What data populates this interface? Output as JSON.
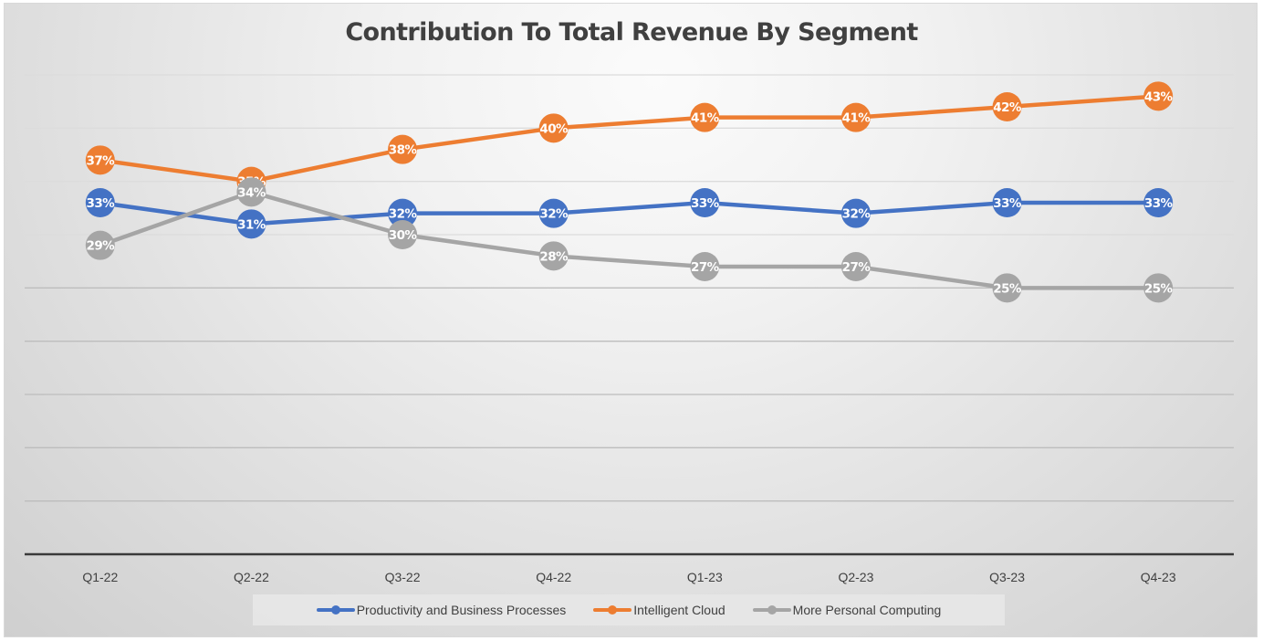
{
  "chart_data": {
    "type": "line",
    "title": "Contribution To Total Revenue By Segment",
    "xlabel": "",
    "ylabel": "",
    "categories": [
      "Q1-22",
      "Q2-22",
      "Q3-22",
      "Q4-22",
      "Q1-23",
      "Q2-23",
      "Q3-23",
      "Q4-23"
    ],
    "ylim": [
      0,
      45
    ],
    "y_gridline_step": 5,
    "grid": true,
    "y_tick_labels_visible": false,
    "legend_position": "bottom",
    "series": [
      {
        "name": "Productivity and Business Processes",
        "color": "#4472C4",
        "values": [
          33,
          31,
          32,
          32,
          33,
          32,
          33,
          33
        ],
        "labels": [
          "33%",
          "31%",
          "32%",
          "32%",
          "33%",
          "32%",
          "33%",
          "33%"
        ]
      },
      {
        "name": "Intelligent Cloud",
        "color": "#ED7D31",
        "values": [
          37,
          35,
          38,
          40,
          41,
          41,
          42,
          43
        ],
        "labels": [
          "37%",
          "35%",
          "38%",
          "40%",
          "41%",
          "41%",
          "42%",
          "43%"
        ]
      },
      {
        "name": "More Personal Computing",
        "color": "#A5A5A5",
        "values": [
          29,
          34,
          30,
          28,
          27,
          27,
          25,
          25
        ],
        "labels": [
          "29%",
          "34%",
          "30%",
          "28%",
          "27%",
          "27%",
          "25%",
          "25%"
        ]
      }
    ]
  }
}
